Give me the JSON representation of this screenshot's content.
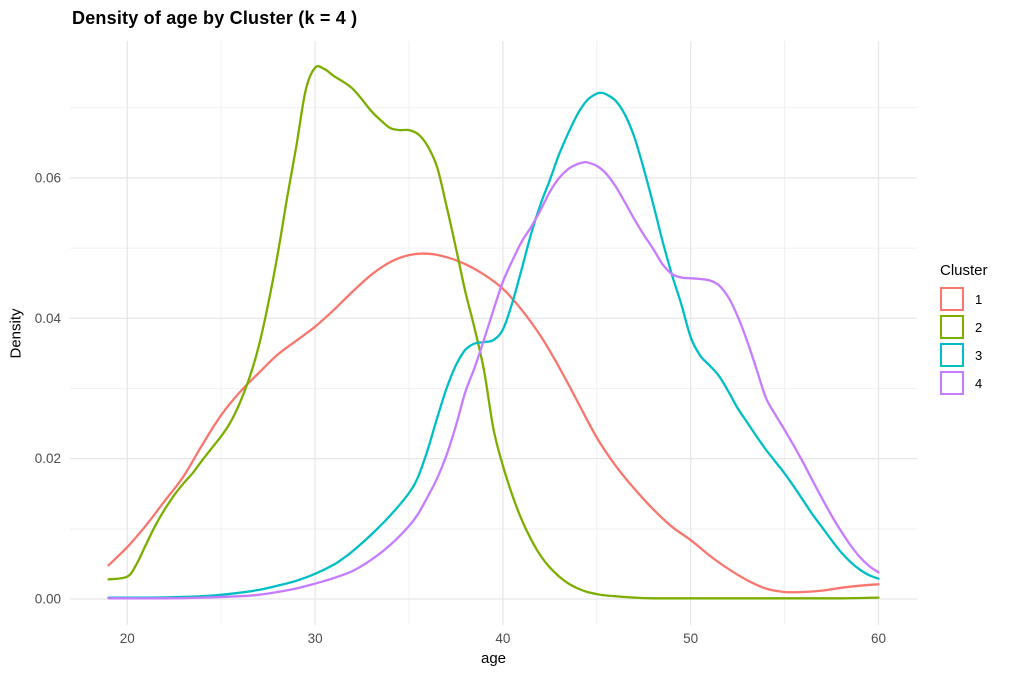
{
  "title": "Density of age by Cluster (k = 4 )",
  "legend": {
    "title": "Cluster"
  },
  "chart_data": {
    "type": "line",
    "subtype": "density",
    "title": "Density of age by Cluster (k = 4 )",
    "xlabel": "age",
    "ylabel": "Density",
    "x_ticks": {
      "values": [
        20,
        30,
        40,
        50,
        60
      ],
      "labels": [
        "20",
        "30",
        "40",
        "50",
        "60"
      ]
    },
    "x_minor_ticks": [
      25,
      35,
      45,
      55
    ],
    "y_ticks": {
      "values": [
        0,
        0.02,
        0.04,
        0.06
      ],
      "labels": [
        "0.00",
        "0.02",
        "0.04",
        "0.06"
      ]
    },
    "y_minor_ticks": [
      0.01,
      0.03,
      0.05,
      0.07
    ],
    "x_range": [
      16.95,
      62.05
    ],
    "y_range": [
      -0.0037,
      0.0795
    ],
    "grid": true,
    "legend_position": "right",
    "legend_title": "Cluster",
    "axis_text_color": "#4d4d4d",
    "grid_major_color": "#e6e6e6",
    "grid_minor_color": "#f1f1f1",
    "series": [
      {
        "name": "1",
        "color": "#F8766D",
        "points": [
          [
            19,
            0.0048
          ],
          [
            20,
            0.0074
          ],
          [
            21,
            0.0105
          ],
          [
            22,
            0.014
          ],
          [
            23,
            0.0175
          ],
          [
            24,
            0.022
          ],
          [
            25,
            0.0262
          ],
          [
            26,
            0.0295
          ],
          [
            27,
            0.0322
          ],
          [
            28,
            0.0348
          ],
          [
            29,
            0.0368
          ],
          [
            30,
            0.0388
          ],
          [
            31,
            0.0412
          ],
          [
            32,
            0.0438
          ],
          [
            33,
            0.0462
          ],
          [
            34,
            0.048
          ],
          [
            35,
            0.049
          ],
          [
            36,
            0.0492
          ],
          [
            37,
            0.0487
          ],
          [
            38,
            0.0477
          ],
          [
            39,
            0.0462
          ],
          [
            40,
            0.0442
          ],
          [
            41,
            0.0412
          ],
          [
            42,
            0.0375
          ],
          [
            43,
            0.033
          ],
          [
            44,
            0.028
          ],
          [
            45,
            0.023
          ],
          [
            46,
            0.019
          ],
          [
            47,
            0.0157
          ],
          [
            48,
            0.0128
          ],
          [
            49,
            0.0103
          ],
          [
            50,
            0.0084
          ],
          [
            51,
            0.0062
          ],
          [
            52,
            0.0043
          ],
          [
            53,
            0.0027
          ],
          [
            54,
            0.0015
          ],
          [
            55,
            0.001
          ],
          [
            56,
            0.001
          ],
          [
            57,
            0.0012
          ],
          [
            58,
            0.0016
          ],
          [
            59,
            0.0019
          ],
          [
            60,
            0.0021
          ]
        ]
      },
      {
        "name": "2",
        "color": "#7CAE00",
        "points": [
          [
            19,
            0.0028
          ],
          [
            20,
            0.0032
          ],
          [
            20.5,
            0.005
          ],
          [
            21,
            0.0078
          ],
          [
            21.5,
            0.0105
          ],
          [
            22,
            0.0128
          ],
          [
            22.5,
            0.0148
          ],
          [
            23,
            0.0165
          ],
          [
            23.5,
            0.018
          ],
          [
            24,
            0.0198
          ],
          [
            24.5,
            0.0215
          ],
          [
            25,
            0.0232
          ],
          [
            25.5,
            0.0252
          ],
          [
            26,
            0.028
          ],
          [
            26.5,
            0.0315
          ],
          [
            27,
            0.036
          ],
          [
            27.5,
            0.042
          ],
          [
            28,
            0.049
          ],
          [
            28.5,
            0.057
          ],
          [
            29,
            0.0645
          ],
          [
            29.5,
            0.0725
          ],
          [
            30,
            0.0757
          ],
          [
            30.5,
            0.0755
          ],
          [
            31,
            0.0745
          ],
          [
            32,
            0.0727
          ],
          [
            33,
            0.0695
          ],
          [
            33.5,
            0.0682
          ],
          [
            34,
            0.0671
          ],
          [
            34.5,
            0.0668
          ],
          [
            35,
            0.0668
          ],
          [
            35.5,
            0.0662
          ],
          [
            36,
            0.0645
          ],
          [
            36.5,
            0.0615
          ],
          [
            37,
            0.056
          ],
          [
            37.5,
            0.05
          ],
          [
            38,
            0.0438
          ],
          [
            38.5,
            0.0385
          ],
          [
            39,
            0.0325
          ],
          [
            39.5,
            0.0242
          ],
          [
            40,
            0.019
          ],
          [
            40.5,
            0.0148
          ],
          [
            41,
            0.0113
          ],
          [
            41.5,
            0.0085
          ],
          [
            42,
            0.0062
          ],
          [
            42.5,
            0.0045
          ],
          [
            43,
            0.0032
          ],
          [
            43.5,
            0.0022
          ],
          [
            44,
            0.0015
          ],
          [
            44.5,
            0.001
          ],
          [
            45,
            0.0007
          ],
          [
            45.5,
            0.0005
          ],
          [
            46,
            0.0004
          ],
          [
            47,
            0.0002
          ],
          [
            48,
            0.0001
          ],
          [
            50,
            0.0001
          ],
          [
            52,
            0.0001
          ],
          [
            55,
            0.0001
          ],
          [
            58,
            0.0001
          ],
          [
            60,
            0.0002
          ]
        ]
      },
      {
        "name": "3",
        "color": "#00BFC4",
        "points": [
          [
            19,
            0.0002
          ],
          [
            21,
            0.0002
          ],
          [
            23,
            0.0003
          ],
          [
            24,
            0.0004
          ],
          [
            25,
            0.0006
          ],
          [
            26,
            0.0009
          ],
          [
            27,
            0.0013
          ],
          [
            28,
            0.0019
          ],
          [
            29,
            0.0026
          ],
          [
            30,
            0.0036
          ],
          [
            31,
            0.0049
          ],
          [
            31.5,
            0.0058
          ],
          [
            32,
            0.0068
          ],
          [
            33,
            0.0092
          ],
          [
            34,
            0.0119
          ],
          [
            35,
            0.0151
          ],
          [
            35.5,
            0.0175
          ],
          [
            36,
            0.0213
          ],
          [
            36.5,
            0.0258
          ],
          [
            37,
            0.03
          ],
          [
            37.5,
            0.0333
          ],
          [
            38,
            0.0355
          ],
          [
            38.5,
            0.0364
          ],
          [
            39,
            0.0366
          ],
          [
            39.5,
            0.0369
          ],
          [
            40,
            0.0384
          ],
          [
            40.5,
            0.0422
          ],
          [
            41,
            0.047
          ],
          [
            41.5,
            0.052
          ],
          [
            42,
            0.0562
          ],
          [
            42.5,
            0.0597
          ],
          [
            43,
            0.0634
          ],
          [
            43.5,
            0.0665
          ],
          [
            44,
            0.0692
          ],
          [
            44.5,
            0.0711
          ],
          [
            45,
            0.072
          ],
          [
            45.3,
            0.0721
          ],
          [
            45.5,
            0.0719
          ],
          [
            46,
            0.071
          ],
          [
            46.5,
            0.069
          ],
          [
            47,
            0.0658
          ],
          [
            47.5,
            0.0613
          ],
          [
            48,
            0.0563
          ],
          [
            48.5,
            0.051
          ],
          [
            49,
            0.0462
          ],
          [
            49.5,
            0.042
          ],
          [
            50,
            0.0373
          ],
          [
            50.5,
            0.0347
          ],
          [
            51,
            0.0333
          ],
          [
            51.5,
            0.0318
          ],
          [
            52,
            0.0296
          ],
          [
            52.5,
            0.0272
          ],
          [
            53,
            0.0252
          ],
          [
            53.5,
            0.0232
          ],
          [
            54,
            0.0213
          ],
          [
            54.5,
            0.0196
          ],
          [
            55,
            0.0179
          ],
          [
            55.5,
            0.016
          ],
          [
            56,
            0.014
          ],
          [
            56.5,
            0.012
          ],
          [
            57,
            0.0102
          ],
          [
            57.5,
            0.0084
          ],
          [
            58,
            0.0067
          ],
          [
            58.5,
            0.0053
          ],
          [
            59,
            0.0042
          ],
          [
            59.5,
            0.0034
          ],
          [
            60,
            0.0029
          ]
        ]
      },
      {
        "name": "4",
        "color": "#C77CFF",
        "points": [
          [
            19,
            0.0001
          ],
          [
            22,
            0.0001
          ],
          [
            24,
            0.0002
          ],
          [
            26,
            0.0004
          ],
          [
            27,
            0.0006
          ],
          [
            28,
            0.001
          ],
          [
            29,
            0.0015
          ],
          [
            30,
            0.0022
          ],
          [
            31,
            0.003
          ],
          [
            32,
            0.004
          ],
          [
            33,
            0.0056
          ],
          [
            34,
            0.0077
          ],
          [
            35,
            0.0104
          ],
          [
            35.5,
            0.0122
          ],
          [
            36,
            0.0146
          ],
          [
            36.5,
            0.0172
          ],
          [
            37,
            0.0205
          ],
          [
            37.5,
            0.0247
          ],
          [
            38,
            0.0295
          ],
          [
            38.5,
            0.033
          ],
          [
            39,
            0.037
          ],
          [
            39.5,
            0.0412
          ],
          [
            40,
            0.0452
          ],
          [
            40.5,
            0.0482
          ],
          [
            41,
            0.0509
          ],
          [
            41.5,
            0.053
          ],
          [
            42,
            0.0554
          ],
          [
            42.5,
            0.058
          ],
          [
            43,
            0.06
          ],
          [
            43.5,
            0.0613
          ],
          [
            44,
            0.062
          ],
          [
            44.3,
            0.0622
          ],
          [
            44.5,
            0.0622
          ],
          [
            45,
            0.0617
          ],
          [
            45.5,
            0.0606
          ],
          [
            46,
            0.0588
          ],
          [
            46.5,
            0.0565
          ],
          [
            47,
            0.0541
          ],
          [
            47.5,
            0.0519
          ],
          [
            48,
            0.0499
          ],
          [
            48.5,
            0.0477
          ],
          [
            49,
            0.0463
          ],
          [
            49.5,
            0.0458
          ],
          [
            50,
            0.0457
          ],
          [
            50.5,
            0.0456
          ],
          [
            51,
            0.0454
          ],
          [
            51.5,
            0.0447
          ],
          [
            52,
            0.043
          ],
          [
            52.5,
            0.0403
          ],
          [
            53,
            0.0368
          ],
          [
            53.5,
            0.0328
          ],
          [
            54,
            0.0287
          ],
          [
            54.5,
            0.0263
          ],
          [
            55,
            0.0241
          ],
          [
            55.5,
            0.0218
          ],
          [
            56,
            0.0194
          ],
          [
            56.5,
            0.0168
          ],
          [
            57,
            0.0143
          ],
          [
            57.5,
            0.0119
          ],
          [
            58,
            0.0097
          ],
          [
            58.5,
            0.0077
          ],
          [
            59,
            0.006
          ],
          [
            59.5,
            0.0047
          ],
          [
            60,
            0.0038
          ]
        ]
      }
    ]
  }
}
